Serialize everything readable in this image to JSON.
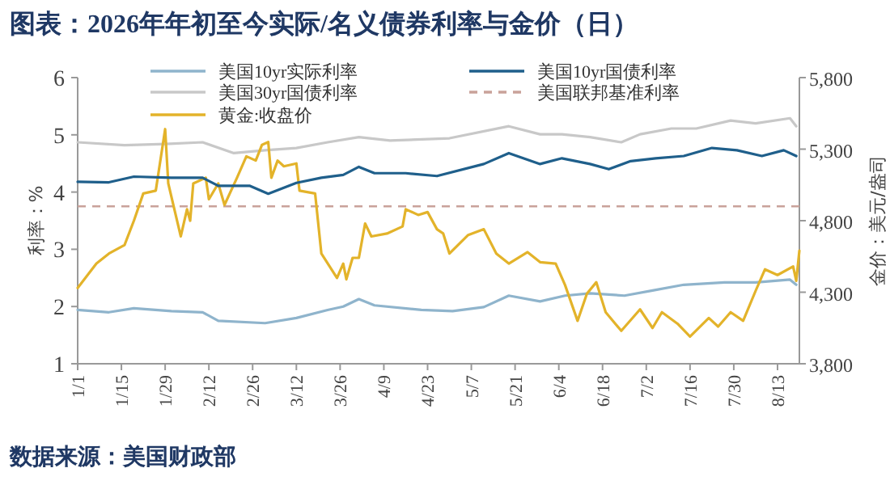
{
  "chart_data": {
    "type": "line",
    "title": "图表：2026年年初至今实际/名义债券利率与金价（日）",
    "ylabel": "利率：%",
    "y2label": "金价：美元/盎司",
    "annotations": [
      "数据来源：美国财政部"
    ],
    "legend": "top",
    "xlim": [
      "2026-01-01",
      "2026-08-20"
    ],
    "xticks": [
      {
        "value": "2026-01-01",
        "label": "1/1"
      },
      {
        "value": "2026-01-15",
        "label": "1/15"
      },
      {
        "value": "2026-01-29",
        "label": "1/29"
      },
      {
        "value": "2026-02-12",
        "label": "2/12"
      },
      {
        "value": "2026-02-26",
        "label": "2/26"
      },
      {
        "value": "2026-03-12",
        "label": "3/12"
      },
      {
        "value": "2026-03-26",
        "label": "3/26"
      },
      {
        "value": "2026-04-09",
        "label": "4/9"
      },
      {
        "value": "2026-04-23",
        "label": "4/23"
      },
      {
        "value": "2026-05-07",
        "label": "5/7"
      },
      {
        "value": "2026-05-21",
        "label": "5/21"
      },
      {
        "value": "2026-06-04",
        "label": "6/4"
      },
      {
        "value": "2026-06-18",
        "label": "6/18"
      },
      {
        "value": "2026-07-02",
        "label": "7/2"
      },
      {
        "value": "2026-07-16",
        "label": "7/16"
      },
      {
        "value": "2026-07-30",
        "label": "7/30"
      },
      {
        "value": "2026-08-13",
        "label": "8/13"
      }
    ],
    "ylim": [
      1,
      6
    ],
    "yticks": [
      1,
      2,
      3,
      4,
      5,
      6
    ],
    "y2lim": [
      3800,
      5800
    ],
    "y2ticks": [
      {
        "value": 3800,
        "label": "3,800"
      },
      {
        "value": 4300,
        "label": "4,300"
      },
      {
        "value": 4800,
        "label": "4,800"
      },
      {
        "value": 5300,
        "label": "5,300"
      },
      {
        "value": 5800,
        "label": "5,800"
      }
    ],
    "ref_lines": [
      {
        "axis": "y",
        "value": 3.75,
        "label": "美国联邦基准利率",
        "color": "#c9a29a",
        "line_style": "dashed"
      }
    ],
    "series": [
      {
        "name": "美国10yr实际利率",
        "color": "#8fb4cc",
        "x": [
          "2026-01-01",
          "2026-01-11",
          "2026-01-19",
          "2026-01-31",
          "2026-02-10",
          "2026-02-15",
          "2026-03-02",
          "2026-03-12",
          "2026-03-22",
          "2026-03-27",
          "2026-04-01",
          "2026-04-06",
          "2026-04-21",
          "2026-05-01",
          "2026-05-11",
          "2026-05-19",
          "2026-05-29",
          "2026-06-06",
          "2026-06-14",
          "2026-06-25",
          "2026-07-04",
          "2026-07-14",
          "2026-07-27",
          "2026-08-06",
          "2026-08-17",
          "2026-08-19"
        ],
        "values": [
          1.94,
          1.9,
          1.97,
          1.92,
          1.9,
          1.75,
          1.71,
          1.8,
          1.94,
          2.0,
          2.13,
          2.02,
          1.94,
          1.92,
          1.99,
          2.19,
          2.09,
          2.19,
          2.23,
          2.19,
          2.28,
          2.38,
          2.42,
          2.42,
          2.47,
          2.38
        ]
      },
      {
        "name": "美国30yr国债利率",
        "color": "#c8c8c8",
        "x": [
          "2026-01-01",
          "2026-01-16",
          "2026-01-29",
          "2026-02-10",
          "2026-02-20",
          "2026-03-02",
          "2026-03-12",
          "2026-03-22",
          "2026-04-01",
          "2026-04-11",
          "2026-04-30",
          "2026-05-19",
          "2026-05-29",
          "2026-06-05",
          "2026-06-14",
          "2026-06-24",
          "2026-06-30",
          "2026-07-10",
          "2026-07-18",
          "2026-07-29",
          "2026-08-06",
          "2026-08-17",
          "2026-08-19"
        ],
        "values": [
          4.87,
          4.82,
          4.84,
          4.87,
          4.68,
          4.73,
          4.77,
          4.87,
          4.96,
          4.9,
          4.94,
          5.15,
          5.01,
          5.01,
          4.96,
          4.87,
          5.01,
          5.11,
          5.11,
          5.25,
          5.2,
          5.29,
          5.15
        ]
      },
      {
        "name": "黄金:收盘价",
        "color": "#e3b32a",
        "axis": "y2",
        "x": [
          "2026-01-01",
          "2026-01-07",
          "2026-01-11",
          "2026-01-16",
          "2026-01-19",
          "2026-01-22",
          "2026-01-26",
          "2026-01-29",
          "2026-01-30",
          "2026-02-03",
          "2026-02-05",
          "2026-02-06",
          "2026-02-07",
          "2026-02-11",
          "2026-02-12",
          "2026-02-15",
          "2026-02-17",
          "2026-02-21",
          "2026-02-24",
          "2026-02-27",
          "2026-03-01",
          "2026-03-03",
          "2026-03-04",
          "2026-03-06",
          "2026-03-08",
          "2026-03-12",
          "2026-03-13",
          "2026-03-18",
          "2026-03-20",
          "2026-03-25",
          "2026-03-27",
          "2026-03-28",
          "2026-03-30",
          "2026-04-01",
          "2026-04-03",
          "2026-04-05",
          "2026-04-10",
          "2026-04-15",
          "2026-04-16",
          "2026-04-20",
          "2026-04-23",
          "2026-04-26",
          "2026-04-28",
          "2026-04-30",
          "2026-05-06",
          "2026-05-11",
          "2026-05-15",
          "2026-05-19",
          "2026-05-25",
          "2026-05-29",
          "2026-06-03",
          "2026-06-06",
          "2026-06-10",
          "2026-06-13",
          "2026-06-16",
          "2026-06-19",
          "2026-06-24",
          "2026-06-30",
          "2026-07-04",
          "2026-07-07",
          "2026-07-12",
          "2026-07-16",
          "2026-07-22",
          "2026-07-25",
          "2026-07-29",
          "2026-08-02",
          "2026-08-06",
          "2026-08-09",
          "2026-08-13",
          "2026-08-18",
          "2026-08-19",
          "2026-08-20"
        ],
        "values": [
          4330,
          4500,
          4570,
          4630,
          4800,
          4990,
          5010,
          5440,
          5060,
          4690,
          4880,
          4800,
          5060,
          5100,
          4950,
          5060,
          4910,
          5100,
          5250,
          5220,
          5330,
          5350,
          5100,
          5220,
          5180,
          5200,
          5010,
          4990,
          4570,
          4400,
          4500,
          4390,
          4540,
          4540,
          4780,
          4690,
          4710,
          4760,
          4880,
          4840,
          4860,
          4740,
          4710,
          4570,
          4700,
          4740,
          4570,
          4500,
          4580,
          4510,
          4500,
          4350,
          4100,
          4290,
          4370,
          4160,
          4030,
          4180,
          4050,
          4160,
          4080,
          3990,
          4120,
          4060,
          4160,
          4100,
          4310,
          4460,
          4420,
          4480,
          4380,
          4590
        ]
      },
      {
        "name": "美国10yr国债利率",
        "color": "#1f5f8b",
        "x": [
          "2026-01-01",
          "2026-01-11",
          "2026-01-19",
          "2026-01-31",
          "2026-02-10",
          "2026-02-15",
          "2026-02-25",
          "2026-03-03",
          "2026-03-12",
          "2026-03-20",
          "2026-03-27",
          "2026-04-01",
          "2026-04-06",
          "2026-04-16",
          "2026-04-26",
          "2026-05-11",
          "2026-05-19",
          "2026-05-29",
          "2026-06-05",
          "2026-06-14",
          "2026-06-20",
          "2026-06-27",
          "2026-07-05",
          "2026-07-14",
          "2026-07-23",
          "2026-07-31",
          "2026-08-08",
          "2026-08-15",
          "2026-08-19"
        ],
        "values": [
          4.18,
          4.17,
          4.27,
          4.25,
          4.25,
          4.11,
          4.11,
          3.97,
          4.16,
          4.25,
          4.3,
          4.44,
          4.33,
          4.33,
          4.28,
          4.49,
          4.68,
          4.49,
          4.59,
          4.49,
          4.4,
          4.54,
          4.59,
          4.63,
          4.77,
          4.73,
          4.63,
          4.73,
          4.63
        ]
      }
    ]
  }
}
